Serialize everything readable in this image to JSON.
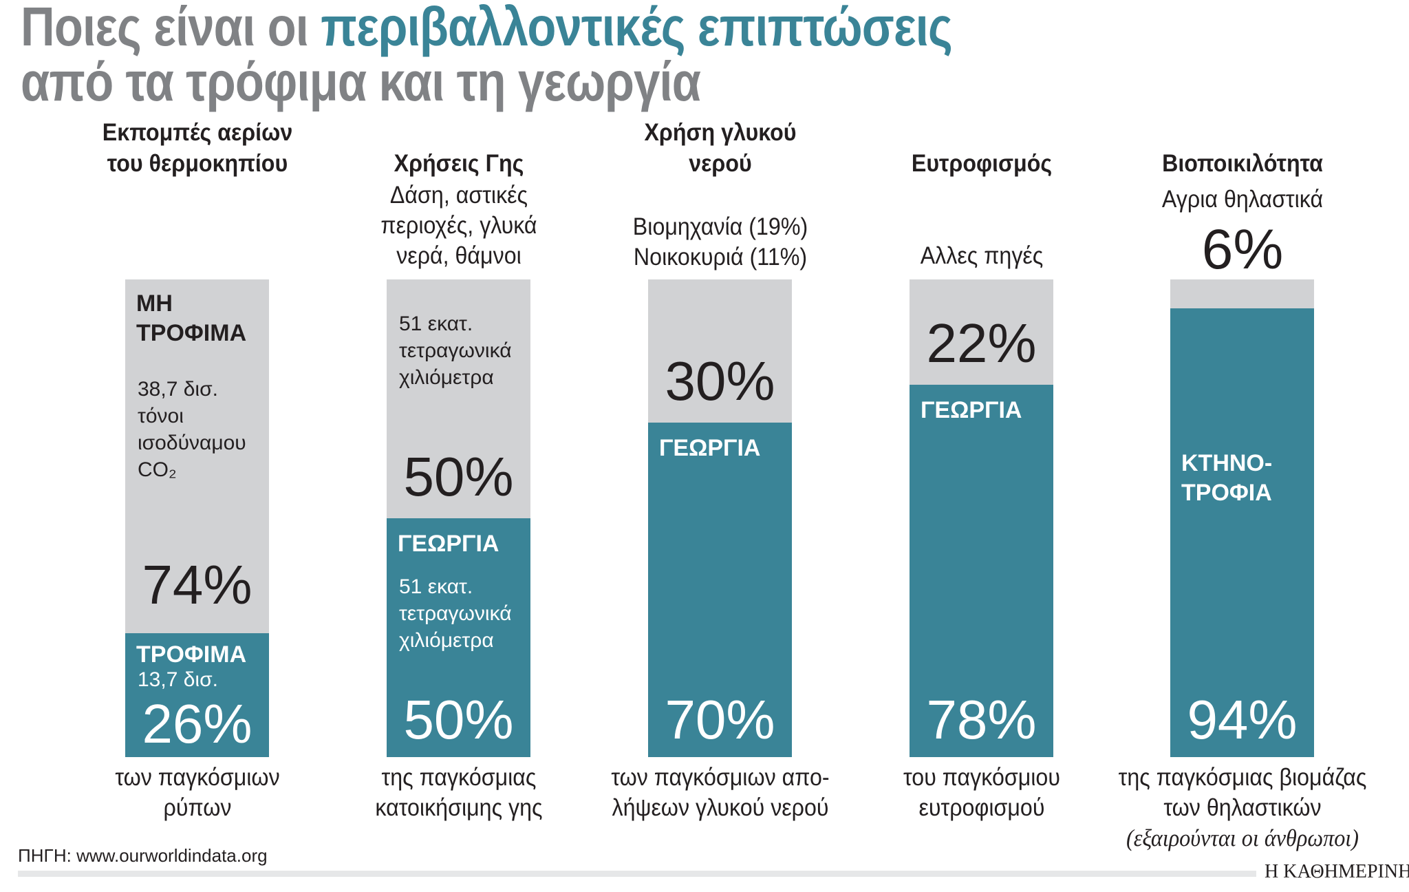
{
  "title": {
    "line1_gray": "Ποιες είναι οι ",
    "line1_teal": "περιβαλλοντικές επιπτώσεις",
    "line2": "από τα τρόφιμα και τη γεωργία"
  },
  "colors": {
    "food": "#3a8497",
    "other": "#d1d2d4",
    "title": "#808285"
  },
  "chart_data": {
    "type": "bar",
    "stacked": true,
    "categories": [
      "Εκπομπές αερίων του θερμοκηπίου",
      "Χρήσεις Γης",
      "Χρήση γλυκού νερού",
      "Ευτροφισμός",
      "Βιοποικιλότητα"
    ],
    "series": [
      {
        "name": "food",
        "values": [
          26,
          50,
          70,
          78,
          94
        ]
      },
      {
        "name": "other",
        "values": [
          74,
          50,
          30,
          22,
          6
        ]
      }
    ],
    "ylim": [
      0,
      100
    ]
  },
  "columns": [
    {
      "header": "Εκπομπές αερίων\nτου θερμοκηπίου",
      "sub": "",
      "top_pct": "",
      "gray_label": "ΜΗ\nΤΡΟΦΙΜΑ",
      "gray_small": "38,7 δισ.\nτόνοι\nισοδύναμου\nCO₂",
      "gray_pct": "74%",
      "teal_label": "ΤΡΟΦΙΜΑ",
      "teal_small": "13,7 δισ.",
      "teal_pct": "26%",
      "footer": "των παγκόσμιων\nρύπων",
      "note": ""
    },
    {
      "header": "Χρήσεις Γης",
      "sub": "Δάση, αστικές\nπεριοχές, γλυκά\nνερά, θάμνοι",
      "top_pct": "",
      "gray_label": "",
      "gray_small": "51 εκατ.\nτετραγωνικά\nχιλιόμετρα",
      "gray_pct": "50%",
      "teal_label": "ΓΕΩΡΓΙΑ",
      "teal_small": "51 εκατ.\nτετραγωνικά\nχιλιόμετρα",
      "teal_pct": "50%",
      "footer": "της παγκόσμιας\nκατοικήσιμης γης",
      "note": ""
    },
    {
      "header": "Χρήση γλυκού\nνερού",
      "sub": "Βιομηχανία (19%)\nΝοικοκυριά (11%)",
      "top_pct": "",
      "gray_label": "",
      "gray_small": "",
      "gray_pct": "30%",
      "teal_label": "ΓΕΩΡΓΙΑ",
      "teal_small": "",
      "teal_pct": "70%",
      "footer": "των παγκόσμιων απο-\nλήψεων γλυκού νερού",
      "note": ""
    },
    {
      "header": "Ευτροφισμός",
      "sub": "Αλλες πηγές",
      "top_pct": "",
      "gray_label": "",
      "gray_small": "",
      "gray_pct": "22%",
      "teal_label": "ΓΕΩΡΓΙΑ",
      "teal_small": "",
      "teal_pct": "78%",
      "footer": "του παγκόσμιου\nευτροφισμού",
      "note": ""
    },
    {
      "header": "Βιοποικιλότητα",
      "sub": "Αγρια θηλαστικά",
      "top_pct": "6%",
      "gray_label": "",
      "gray_small": "",
      "gray_pct": "",
      "teal_label": "ΚΤΗΝΟ-\nΤΡΟΦΙΑ",
      "teal_small": "",
      "teal_pct": "94%",
      "footer": "της παγκόσμιας βιομάζας\nτων θηλαστικών",
      "note": "(εξαιρούνται οι άνθρωποι)"
    }
  ],
  "source": "ΠΗΓΗ: www.ourworldindata.org",
  "brand": "Η ΚΑΘΗΜΕΡΙΝΗ"
}
